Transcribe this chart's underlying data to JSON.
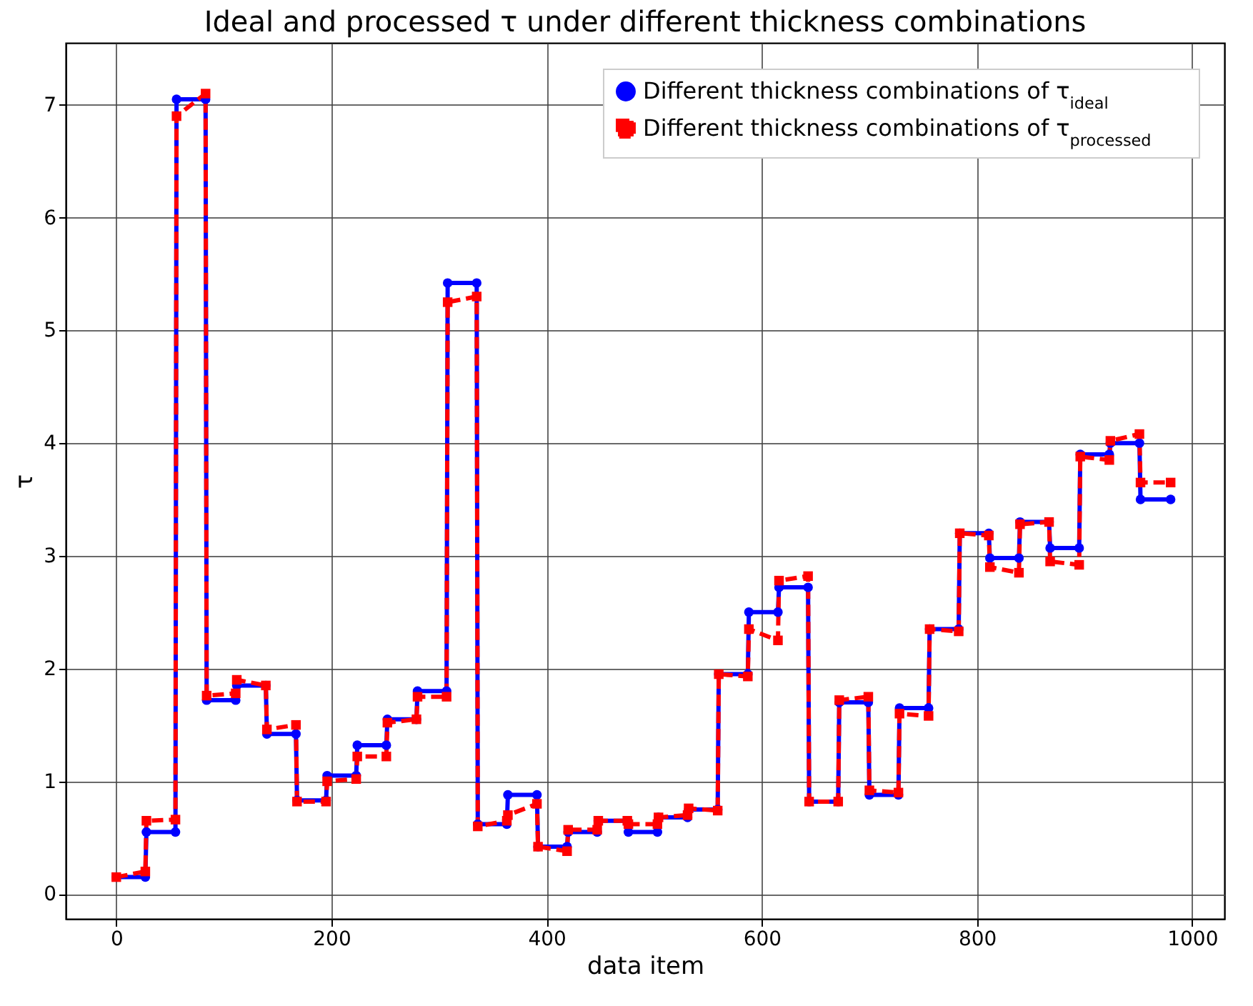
{
  "chart_data": {
    "type": "line",
    "title": "Ideal and processed τ under different thickness combinations",
    "xlabel": "data item",
    "ylabel": "τ",
    "x": [
      0,
      27,
      28,
      55,
      56,
      83,
      84,
      111,
      112,
      139,
      140,
      167,
      168,
      195,
      196,
      223,
      224,
      251,
      252,
      279,
      280,
      307,
      308,
      335,
      336,
      363,
      364,
      391,
      392,
      419,
      420,
      447,
      448,
      475,
      476,
      503,
      504,
      531,
      532,
      559,
      560,
      587,
      588,
      615,
      616,
      643,
      644,
      671,
      672,
      699,
      700,
      727,
      728,
      755,
      756,
      783,
      784,
      811,
      812,
      839,
      840,
      867,
      868,
      895,
      896,
      923,
      924,
      951,
      952,
      980
    ],
    "series": [
      {
        "name": "Different thickness combinations of τ$_{ideal}$",
        "color": "#0000ff",
        "marker": "circle",
        "line_style": "solid",
        "values": [
          0.15,
          0.15,
          0.55,
          0.55,
          7.05,
          7.05,
          1.72,
          1.72,
          1.85,
          1.85,
          1.42,
          1.42,
          0.83,
          0.83,
          1.05,
          1.05,
          1.32,
          1.32,
          1.55,
          1.55,
          1.8,
          1.8,
          5.42,
          5.42,
          0.62,
          0.62,
          0.88,
          0.88,
          0.42,
          0.42,
          0.55,
          0.55,
          0.65,
          0.65,
          0.55,
          0.55,
          0.68,
          0.68,
          0.75,
          0.75,
          1.95,
          1.95,
          2.5,
          2.5,
          2.72,
          2.72,
          0.82,
          0.82,
          1.7,
          1.7,
          0.88,
          0.88,
          1.65,
          1.65,
          2.35,
          2.35,
          3.2,
          3.2,
          2.98,
          2.98,
          3.3,
          3.3,
          3.07,
          3.07,
          3.9,
          3.9,
          4.0,
          4.0,
          3.5,
          3.5
        ]
      },
      {
        "name": "Different thickness combinations of τ$_{processed}$",
        "color": "#ff0000",
        "marker": "square",
        "line_style": "dashed",
        "values": [
          0.15,
          0.2,
          0.65,
          0.66,
          6.9,
          7.1,
          1.76,
          1.78,
          1.9,
          1.85,
          1.46,
          1.5,
          0.82,
          0.82,
          1.0,
          1.02,
          1.22,
          1.22,
          1.52,
          1.55,
          1.75,
          1.75,
          5.25,
          5.3,
          0.6,
          0.65,
          0.7,
          0.8,
          0.42,
          0.38,
          0.57,
          0.57,
          0.65,
          0.65,
          0.62,
          0.62,
          0.68,
          0.7,
          0.76,
          0.74,
          1.95,
          1.93,
          2.35,
          2.25,
          2.78,
          2.82,
          0.82,
          0.82,
          1.72,
          1.75,
          0.92,
          0.9,
          1.6,
          1.58,
          2.35,
          2.33,
          3.2,
          3.18,
          2.9,
          2.85,
          3.28,
          3.3,
          2.95,
          2.92,
          3.88,
          3.85,
          4.02,
          4.08,
          3.65,
          3.65
        ]
      }
    ],
    "xlim": [
      -47,
      1030
    ],
    "ylim": [
      -0.22,
      7.55
    ],
    "xticks": [
      0,
      200,
      400,
      600,
      800,
      1000
    ],
    "yticks": [
      0,
      1,
      2,
      3,
      4,
      5,
      6,
      7
    ],
    "grid": true,
    "legend": "top right"
  }
}
